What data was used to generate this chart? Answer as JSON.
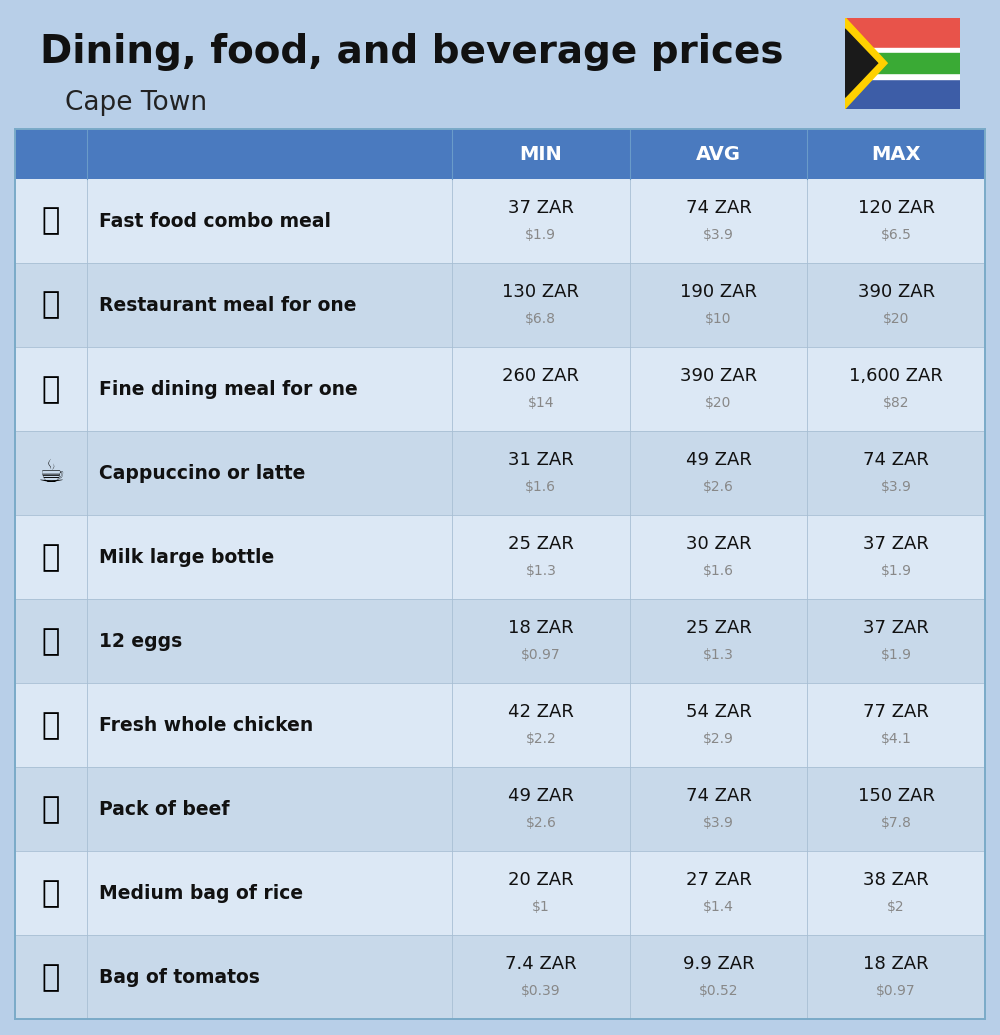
{
  "title": "Dining, food, and beverage prices",
  "subtitle": "Cape Town",
  "bg_color": "#b8cfe8",
  "header_color": "#4a7abf",
  "header_text_color": "#ffffff",
  "row_colors": [
    "#dce8f5",
    "#c8d9ea"
  ],
  "rows": [
    {
      "label": "Fast food combo meal",
      "emoji": "🍔",
      "min_zar": "37 ZAR",
      "min_usd": "$1.9",
      "avg_zar": "74 ZAR",
      "avg_usd": "$3.9",
      "max_zar": "120 ZAR",
      "max_usd": "$6.5"
    },
    {
      "label": "Restaurant meal for one",
      "emoji": "🍳",
      "min_zar": "130 ZAR",
      "min_usd": "$6.8",
      "avg_zar": "190 ZAR",
      "avg_usd": "$10",
      "max_zar": "390 ZAR",
      "max_usd": "$20"
    },
    {
      "label": "Fine dining meal for one",
      "emoji": "🍽",
      "min_zar": "260 ZAR",
      "min_usd": "$14",
      "avg_zar": "390 ZAR",
      "avg_usd": "$20",
      "max_zar": "1,600 ZAR",
      "max_usd": "$82"
    },
    {
      "label": "Cappuccino or latte",
      "emoji": "☕",
      "min_zar": "31 ZAR",
      "min_usd": "$1.6",
      "avg_zar": "49 ZAR",
      "avg_usd": "$2.6",
      "max_zar": "74 ZAR",
      "max_usd": "$3.9"
    },
    {
      "label": "Milk large bottle",
      "emoji": "🥛",
      "min_zar": "25 ZAR",
      "min_usd": "$1.3",
      "avg_zar": "30 ZAR",
      "avg_usd": "$1.6",
      "max_zar": "37 ZAR",
      "max_usd": "$1.9"
    },
    {
      "label": "12 eggs",
      "emoji": "🥚",
      "min_zar": "18 ZAR",
      "min_usd": "$0.97",
      "avg_zar": "25 ZAR",
      "avg_usd": "$1.3",
      "max_zar": "37 ZAR",
      "max_usd": "$1.9"
    },
    {
      "label": "Fresh whole chicken",
      "emoji": "🍗",
      "min_zar": "42 ZAR",
      "min_usd": "$2.2",
      "avg_zar": "54 ZAR",
      "avg_usd": "$2.9",
      "max_zar": "77 ZAR",
      "max_usd": "$4.1"
    },
    {
      "label": "Pack of beef",
      "emoji": "🥩",
      "min_zar": "49 ZAR",
      "min_usd": "$2.6",
      "avg_zar": "74 ZAR",
      "avg_usd": "$3.9",
      "max_zar": "150 ZAR",
      "max_usd": "$7.8"
    },
    {
      "label": "Medium bag of rice",
      "emoji": "🍚",
      "min_zar": "20 ZAR",
      "min_usd": "$1",
      "avg_zar": "27 ZAR",
      "avg_usd": "$1.4",
      "max_zar": "38 ZAR",
      "max_usd": "$2"
    },
    {
      "label": "Bag of tomatos",
      "emoji": "🍅",
      "min_zar": "7.4 ZAR",
      "min_usd": "$0.39",
      "avg_zar": "9.9 ZAR",
      "avg_usd": "$0.52",
      "max_zar": "18 ZAR",
      "max_usd": "$0.97"
    }
  ],
  "flag": {
    "red": "#E8534A",
    "blue": "#3D5DA7",
    "green": "#3AAA35",
    "yellow": "#FFD100",
    "black": "#1A1A1A",
    "white": "#FFFFFF"
  }
}
